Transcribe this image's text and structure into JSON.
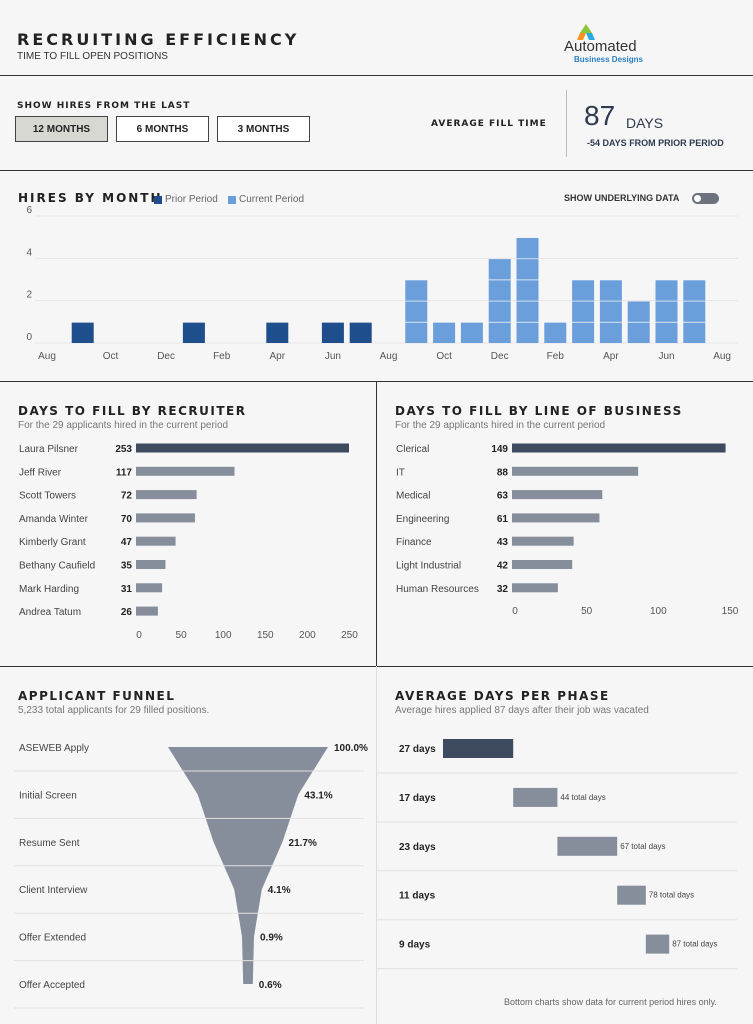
{
  "header": {
    "title": "RECRUITING EFFICIENCY",
    "subtitle": "TIME TO FILL OPEN POSITIONS",
    "logo_name": "Automated",
    "logo_tagline": "Business Designs"
  },
  "filters": {
    "label": "SHOW HIRES FROM THE LAST",
    "options": [
      "12 MONTHS",
      "6 MONTHS",
      "3 MONTHS"
    ],
    "selected": "12 MONTHS"
  },
  "kpi": {
    "label": "AVERAGE FILL TIME",
    "value": "87",
    "unit": "DAYS",
    "delta": "-54 DAYS FROM PRIOR PERIOD"
  },
  "hires_by_month": {
    "title": "HIRES BY MONTH",
    "toggle_label": "SHOW UNDERLYING DATA",
    "colors": {
      "prior": "#1f4e8c",
      "current": "#6a9fdb"
    }
  },
  "funnel": {
    "title": "APPLICANT FUNNEL",
    "subtitle": "5,233 total applicants for 29 filled positions.",
    "color": "#868e9b"
  },
  "phases": {
    "title": "AVERAGE DAYS PER PHASE",
    "subtitle": "Average hires applied 87 days after their job was vacated",
    "footnote": "Bottom charts show data for current period hires only.",
    "colors": {
      "first": "#3d4a60",
      "rest": "#868e9b"
    }
  },
  "chart_data": [
    {
      "type": "bar",
      "title": "HIRES BY MONTH",
      "x": [
        "Aug",
        "Sep",
        "Oct",
        "Nov",
        "Dec",
        "Jan",
        "Feb",
        "Mar",
        "Apr",
        "May",
        "Jun",
        "Jul",
        "Aug",
        "Sep",
        "Oct",
        "Nov",
        "Dec",
        "Jan",
        "Feb",
        "Mar",
        "Apr",
        "May",
        "Jun",
        "Jul",
        "Aug"
      ],
      "x_tick_labels": [
        "Aug",
        "Oct",
        "Dec",
        "Feb",
        "Apr",
        "Jun",
        "Aug",
        "Oct",
        "Dec",
        "Feb",
        "Apr",
        "Jun",
        "Aug"
      ],
      "series": [
        {
          "name": "Prior Period",
          "values": [
            0,
            1,
            0,
            0,
            0,
            1,
            0,
            0,
            1,
            0,
            1,
            1,
            0,
            null,
            null,
            null,
            null,
            null,
            null,
            null,
            null,
            null,
            null,
            null,
            null
          ]
        },
        {
          "name": "Current Period",
          "values": [
            null,
            null,
            null,
            null,
            null,
            null,
            null,
            null,
            null,
            null,
            null,
            null,
            null,
            3,
            1,
            1,
            4,
            5,
            1,
            3,
            3,
            2,
            3,
            3,
            0
          ]
        }
      ],
      "ylim": [
        0,
        6
      ],
      "y_ticks": [
        0,
        2,
        4,
        6
      ],
      "legend": "top"
    },
    {
      "type": "bar",
      "title": "DAYS TO FILL BY RECRUITER",
      "subtitle": "For the 29 applicants hired in the current period",
      "categories": [
        "Laura Pilsner",
        "Jeff River",
        "Scott Towers",
        "Amanda Winter",
        "Kimberly Grant",
        "Bethany Caufield",
        "Mark Harding",
        "Andrea Tatum"
      ],
      "values": [
        253,
        117,
        72,
        70,
        47,
        35,
        31,
        26
      ],
      "xlim": [
        0,
        260
      ],
      "x_ticks": [
        0,
        50,
        100,
        150,
        200,
        250
      ]
    },
    {
      "type": "bar",
      "title": "DAYS TO FILL BY LINE OF BUSINESS",
      "subtitle": "For the 29 applicants hired in the current period",
      "categories": [
        "Clerical",
        "IT",
        "Medical",
        "Engineering",
        "Finance",
        "Light Industrial",
        "Human Resources"
      ],
      "values": [
        149,
        88,
        63,
        61,
        43,
        42,
        32
      ],
      "xlim": [
        0,
        150
      ],
      "x_ticks": [
        0,
        50,
        100,
        150
      ]
    },
    {
      "type": "area",
      "title": "APPLICANT FUNNEL",
      "categories": [
        "ASEWEB Apply",
        "Initial Screen",
        "Resume Sent",
        "Client Interview",
        "Offer Extended",
        "Offer Accepted"
      ],
      "values": [
        100.0,
        43.1,
        21.7,
        4.1,
        0.9,
        0.6
      ],
      "labels": [
        "100.0%",
        "43.1%",
        "21.7%",
        "4.1%",
        "0.9%",
        "0.6%"
      ]
    },
    {
      "type": "bar",
      "title": "AVERAGE DAYS PER PHASE",
      "categories": [
        "27 days",
        "17 days",
        "23 days",
        "11 days",
        "9 days"
      ],
      "starts": [
        0,
        27,
        44,
        67,
        78
      ],
      "ends": [
        27,
        44,
        67,
        78,
        87
      ],
      "totals": [
        "",
        "44 total days",
        "67 total days",
        "78 total days",
        "87 total days"
      ]
    }
  ]
}
